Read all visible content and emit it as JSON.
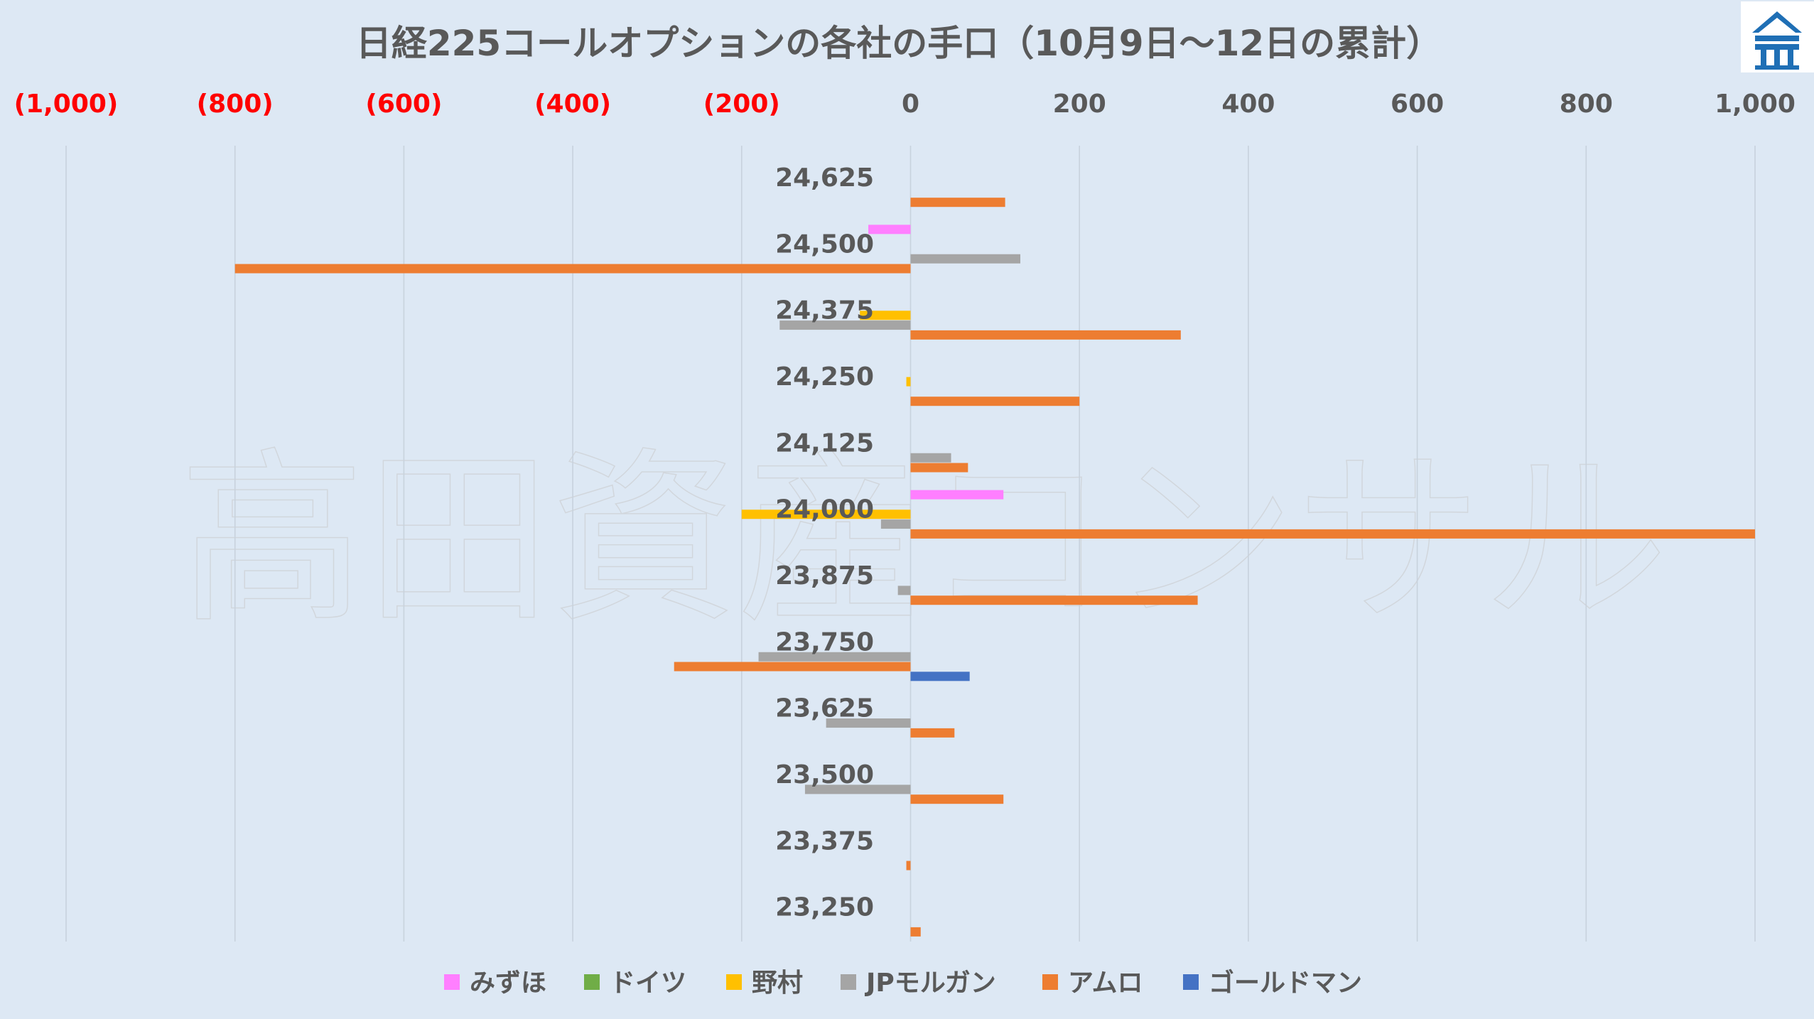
{
  "watermark": "高田資産コンサル",
  "logo": {
    "icon": "temple-roof-logo-icon",
    "color": "#1f6fb5"
  },
  "chart_data": {
    "type": "bar",
    "orientation": "horizontal",
    "title": "日経225コールオプションの各社の手口（10月9日～12日の累計）",
    "xlim": [
      -1000,
      1000
    ],
    "x_ticks": [
      -1000,
      -800,
      -600,
      -400,
      -200,
      0,
      200,
      400,
      600,
      800,
      1000
    ],
    "x_tick_labels": [
      "(1,000)",
      "(800)",
      "(600)",
      "(400)",
      "(200)",
      "0",
      "200",
      "400",
      "600",
      "800",
      "1,000"
    ],
    "negative_tick_color": "#ff0000",
    "positive_tick_color": "#595959",
    "gridlines": "vertical",
    "legend_position": "bottom",
    "categories": [
      "24,625",
      "24,500",
      "24,375",
      "24,250",
      "24,125",
      "24,000",
      "23,875",
      "23,750",
      "23,625",
      "23,500",
      "23,375",
      "23,250"
    ],
    "series": [
      {
        "name": "みずほ",
        "color": "#ff7fff",
        "values": [
          0,
          -50,
          0,
          0,
          0,
          110,
          0,
          0,
          0,
          0,
          0,
          0
        ]
      },
      {
        "name": "ドイツ",
        "color": "#70ad47",
        "values": [
          0,
          0,
          0,
          0,
          0,
          0,
          0,
          0,
          0,
          0,
          0,
          0
        ]
      },
      {
        "name": "野村",
        "color": "#ffc000",
        "values": [
          0,
          0,
          -60,
          -5,
          0,
          -200,
          0,
          0,
          0,
          0,
          0,
          0
        ]
      },
      {
        "name": "JPモルガン",
        "color": "#a5a5a5",
        "values": [
          0,
          130,
          -155,
          0,
          48,
          -35,
          -15,
          -180,
          -100,
          -125,
          0,
          0
        ]
      },
      {
        "name": "アムロ",
        "color": "#ed7d31",
        "values": [
          112,
          -800,
          320,
          200,
          68,
          1000,
          340,
          -280,
          52,
          110,
          -5,
          12
        ]
      },
      {
        "name": "ゴールドマン",
        "color": "#4472c4",
        "values": [
          0,
          0,
          0,
          0,
          0,
          0,
          0,
          70,
          0,
          0,
          0,
          0
        ]
      }
    ]
  }
}
